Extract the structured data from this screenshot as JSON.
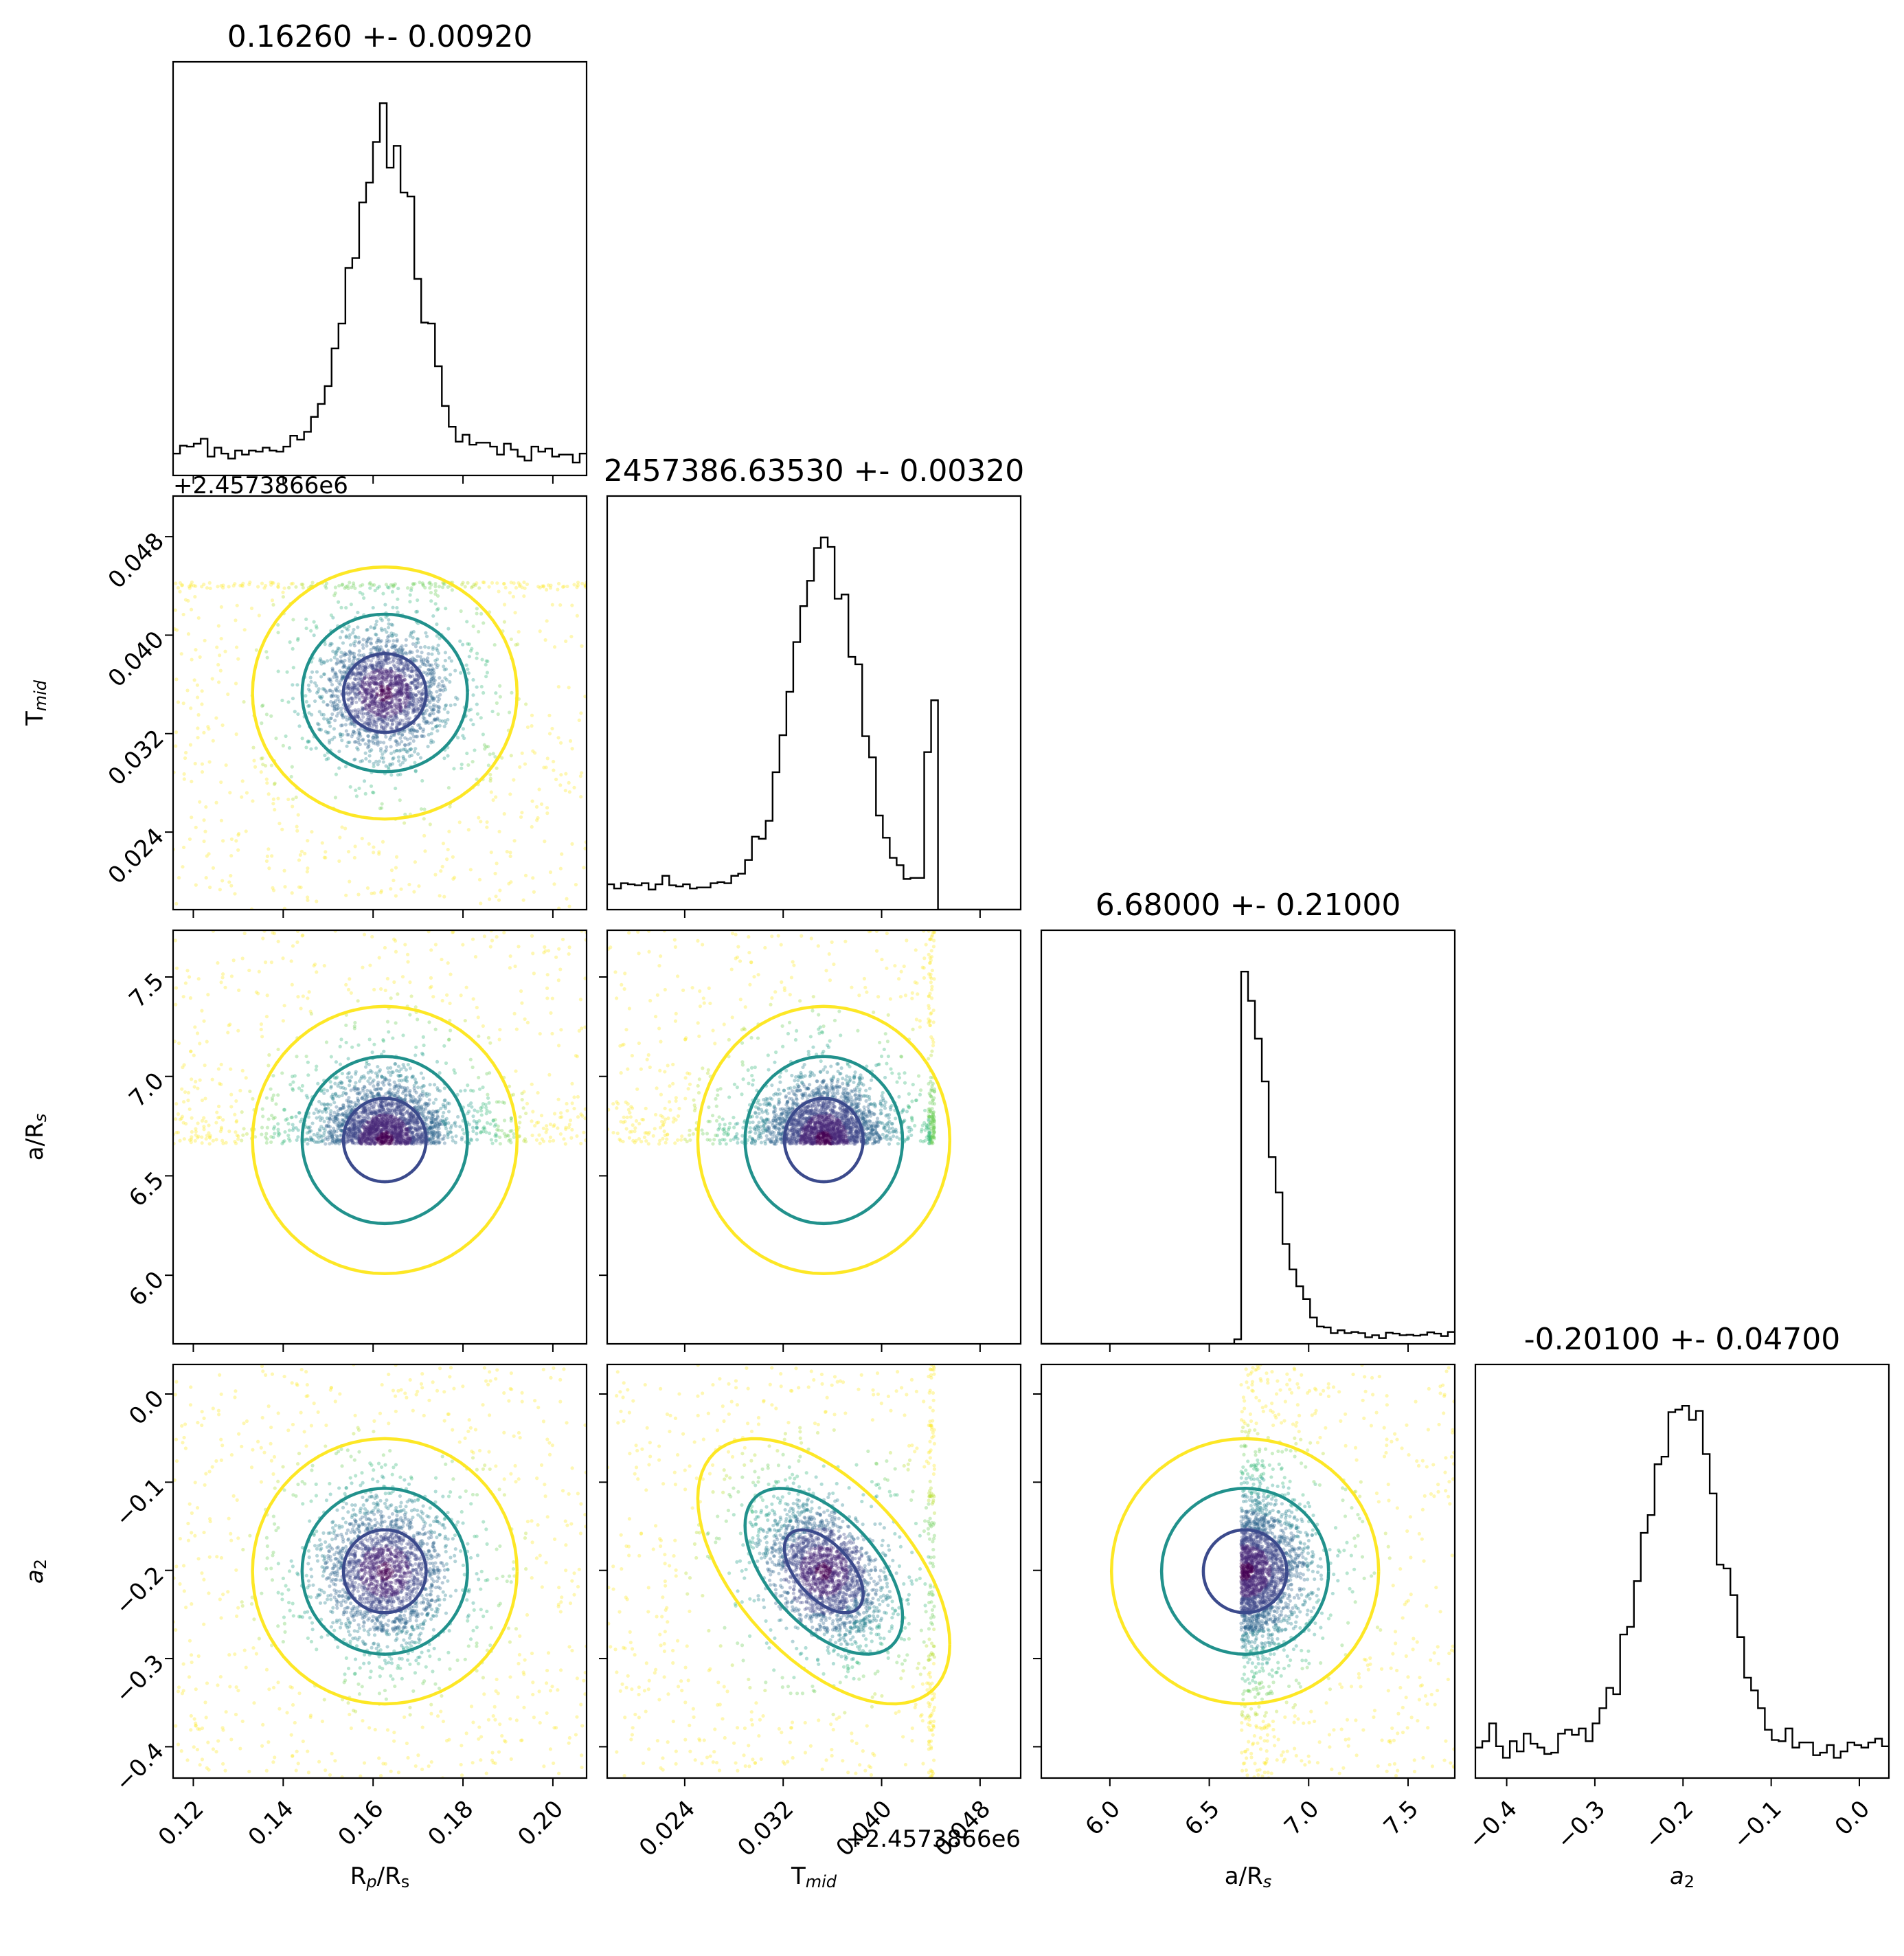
{
  "chart_data": {
    "type": "scatter",
    "variant": "corner plot",
    "parameters": [
      {
        "label": "R_p/R_s",
        "label_main": "R",
        "label_sub": "p",
        "label_tail": "/R",
        "label_tail_sub": "s",
        "title": "0.16260 +- 0.00920",
        "mean": 0.1626,
        "std": 0.0092,
        "range": [
          0.1155,
          0.2075
        ],
        "ticks": [
          "0.12",
          "0.14",
          "0.16",
          "0.18",
          "0.20"
        ],
        "tick_values": [
          0.12,
          0.14,
          0.16,
          0.18,
          0.2
        ],
        "offset_text": ""
      },
      {
        "label": "T_mid",
        "label_main": "T",
        "label_sub": "mid",
        "title": "2457386.63530 +- 0.00320",
        "mean": 0.0353,
        "std": 0.0032,
        "range": [
          0.0177,
          0.0513
        ],
        "ticks": [
          "0.024",
          "0.032",
          "0.040",
          "0.048"
        ],
        "tick_values": [
          0.024,
          0.032,
          0.04,
          0.048
        ],
        "offset_text": "+2.4573866e6"
      },
      {
        "label": "a/R_s",
        "label_main": "a/R",
        "label_sub": "s",
        "title": "6.68000 +- 0.21000",
        "mean": 6.68,
        "std": 0.21,
        "range": [
          5.655,
          7.735
        ],
        "ticks": [
          "6.0",
          "6.5",
          "7.0",
          "7.5"
        ],
        "tick_values": [
          6.0,
          6.5,
          7.0,
          7.5
        ],
        "offset_text": ""
      },
      {
        "label": "a_2",
        "label_main": "a",
        "label_sub": "2",
        "title": "-0.20100 +- 0.04700",
        "mean": -0.201,
        "std": 0.047,
        "range": [
          -0.4355,
          0.0335
        ],
        "ticks": [
          "−0.4",
          "−0.3",
          "−0.2",
          "−0.1",
          "0.0"
        ],
        "tick_values": [
          -0.4,
          -0.3,
          -0.2,
          -0.1,
          0.0
        ],
        "offset_text": ""
      }
    ],
    "sample_bounds": {
      "T_mid_max": 0.0443,
      "a_R_s_min": 6.66
    },
    "contour_colors": [
      "#3b4a8c",
      "#21918c",
      "#fde725"
    ],
    "point_colormap": "viridis",
    "grid": false,
    "legend": "none"
  }
}
